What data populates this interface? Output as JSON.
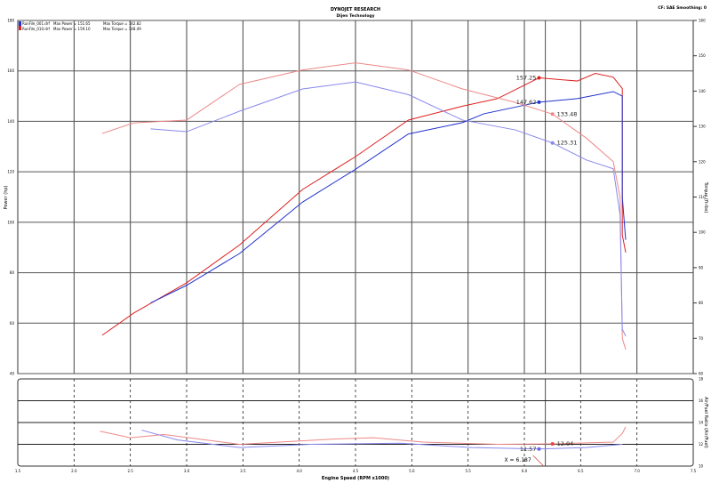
{
  "header": {
    "title": "DYNOJET RESEARCH",
    "subtitle": "Dijen Technology",
    "settings": "CF: SAE  Smoothing: 0"
  },
  "legend": [
    {
      "file": "RunFile_001.drf",
      "power": "Max Power = 151.65",
      "torque": "Max Torque = 142.82",
      "color": "#2233dd"
    },
    {
      "file": "RunFile_010.drf",
      "power": "Max Power = 159.10",
      "torque": "Max Torque = 148.49",
      "color": "#dd2222"
    }
  ],
  "colors": {
    "run1_power": "#2233cc",
    "run1_torque": "#8888ee",
    "run2_power": "#dd2222",
    "run2_torque": "#ee8888"
  },
  "chart_data": [
    {
      "type": "line",
      "xlabel": "Engine Speed (RPM x1000)",
      "ylabel": "Power (hp)",
      "y2label": "Torque (ft-lbs)",
      "xlim": [
        1.5,
        7.5
      ],
      "ylim": [
        40,
        180
      ],
      "y2lim": [
        60,
        160
      ],
      "xticks": [
        "1.5",
        "2.0",
        "2.5",
        "3.0",
        "3.5",
        "4.0",
        "4.5",
        "5.0",
        "5.5",
        "6.0",
        "6.5",
        "7.0",
        "7.5"
      ],
      "yticks": [
        "40",
        "60",
        "80",
        "100",
        "120",
        "140",
        "160",
        "180"
      ],
      "y2ticks": [
        "60",
        "70",
        "80",
        "90",
        "100",
        "110",
        "120",
        "130",
        "140",
        "150",
        "160"
      ],
      "grid": true,
      "series": [
        {
          "name": "RunFile_010.drf",
          "measure": "power",
          "axis": "left",
          "color": "#dd2222",
          "points": [
            [
              2.25,
              55.2
            ],
            [
              2.53,
              64
            ],
            [
              3.0,
              76
            ],
            [
              3.47,
              91
            ],
            [
              4.03,
              113
            ],
            [
              4.5,
              126
            ],
            [
              4.97,
              140.5
            ],
            [
              5.45,
              146
            ],
            [
              5.76,
              149
            ],
            [
              6.13,
              157.25
            ],
            [
              6.47,
              156
            ],
            [
              6.63,
              159
            ],
            [
              6.79,
              157.5
            ],
            [
              6.87,
              153
            ],
            [
              6.87,
              95
            ],
            [
              6.9,
              88
            ]
          ]
        },
        {
          "name": "RunFile_001.drf",
          "measure": "power",
          "axis": "left",
          "color": "#2233cc",
          "points": [
            [
              2.68,
              68
            ],
            [
              3.0,
              75
            ],
            [
              3.47,
              87.6
            ],
            [
              4.03,
              108
            ],
            [
              4.5,
              121
            ],
            [
              4.97,
              135
            ],
            [
              5.45,
              139.5
            ],
            [
              5.64,
              143
            ],
            [
              6.13,
              147.62
            ],
            [
              6.47,
              149
            ],
            [
              6.79,
              151.8
            ],
            [
              6.87,
              150
            ],
            [
              6.87,
              110
            ],
            [
              6.9,
              93
            ]
          ]
        },
        {
          "name": "RunFile_010.drf",
          "measure": "torque",
          "axis": "right",
          "color": "#ee8888",
          "points": [
            [
              2.25,
              128
            ],
            [
              2.53,
              131
            ],
            [
              3.0,
              131.8
            ],
            [
              3.47,
              141.9
            ],
            [
              4.03,
              146
            ],
            [
              4.5,
              148
            ],
            [
              4.97,
              146
            ],
            [
              5.45,
              140.6
            ],
            [
              5.92,
              136.8
            ],
            [
              6.25,
              133.48
            ],
            [
              6.55,
              126.7
            ],
            [
              6.79,
              120
            ],
            [
              6.85,
              110
            ],
            [
              6.87,
              70
            ],
            [
              6.9,
              66.8
            ]
          ]
        },
        {
          "name": "RunFile_001.drf",
          "measure": "torque",
          "axis": "right",
          "color": "#8888ee",
          "points": [
            [
              2.68,
              129.3
            ],
            [
              3.0,
              128.5
            ],
            [
              3.47,
              134.3
            ],
            [
              4.03,
              140.6
            ],
            [
              4.5,
              142.6
            ],
            [
              4.97,
              139
            ],
            [
              5.45,
              131.8
            ],
            [
              5.92,
              129
            ],
            [
              6.25,
              125.31
            ],
            [
              6.55,
              120.5
            ],
            [
              6.79,
              118
            ],
            [
              6.85,
              105
            ],
            [
              6.87,
              72.6
            ],
            [
              6.9,
              70.6
            ]
          ]
        }
      ],
      "annotations": [
        {
          "label": "157.25",
          "x": 6.13,
          "y": 157.25,
          "axis": "left",
          "color": "#dd2222",
          "side": "left"
        },
        {
          "label": "147.62",
          "x": 6.13,
          "y": 147.62,
          "axis": "left",
          "color": "#2233cc",
          "side": "left"
        },
        {
          "label": "133.48",
          "x": 6.25,
          "y": 133.48,
          "axis": "right",
          "color": "#ee8888",
          "side": "right"
        },
        {
          "label": "125.31",
          "x": 6.25,
          "y": 125.31,
          "axis": "right",
          "color": "#8888ee",
          "side": "right"
        }
      ]
    },
    {
      "type": "line",
      "xlabel": "Engine Speed (RPM x1000)",
      "ylabel": "Air/Fuel Ratio (Air/Fuel)",
      "xlim": [
        1.5,
        7.5
      ],
      "ylim": [
        10,
        18
      ],
      "yticks": [
        "10",
        "12",
        "14",
        "16",
        "18"
      ],
      "grid": true,
      "cursor": {
        "x": 6.187,
        "label": "X = 6.187"
      },
      "series": [
        {
          "name": "RunFile_010.drf",
          "color": "#ee8888",
          "points": [
            [
              2.23,
              13.2
            ],
            [
              2.5,
              12.6
            ],
            [
              2.8,
              12.9
            ],
            [
              3.47,
              12.0
            ],
            [
              4.34,
              12.5
            ],
            [
              4.66,
              12.6
            ],
            [
              5.1,
              12.2
            ],
            [
              5.76,
              12.0
            ],
            [
              6.25,
              12.04
            ],
            [
              6.79,
              12.2
            ],
            [
              6.87,
              13.0
            ],
            [
              6.9,
              13.6
            ]
          ]
        },
        {
          "name": "RunFile_001.drf",
          "color": "#8888ee",
          "points": [
            [
              2.6,
              13.3
            ],
            [
              2.92,
              12.4
            ],
            [
              3.47,
              11.7
            ],
            [
              4.1,
              12.0
            ],
            [
              4.9,
              12.1
            ],
            [
              5.53,
              11.7
            ],
            [
              6.13,
              11.57
            ],
            [
              6.55,
              11.7
            ],
            [
              6.87,
              12.0
            ]
          ]
        }
      ],
      "annotations": [
        {
          "label": "12.04",
          "x": 6.25,
          "y": 12.04,
          "color": "#ee4444",
          "side": "right"
        },
        {
          "label": "11.57",
          "x": 6.13,
          "y": 11.57,
          "color": "#6666ee",
          "side": "left"
        }
      ]
    }
  ]
}
